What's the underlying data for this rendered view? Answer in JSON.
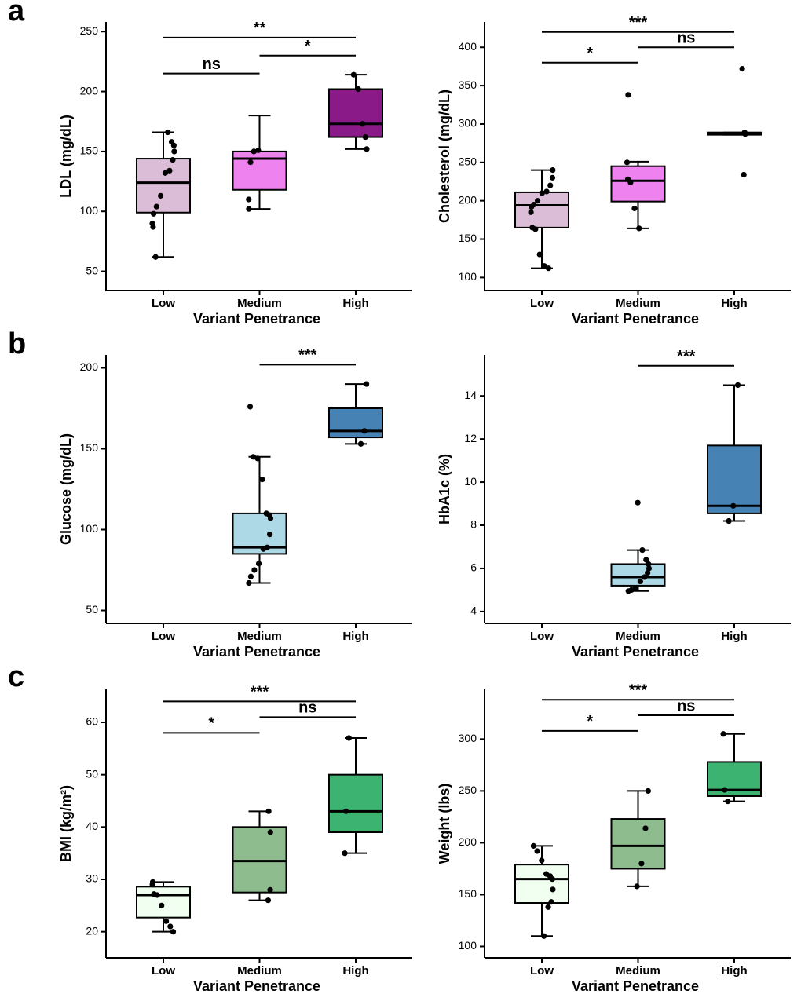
{
  "panel_labels": [
    "a",
    "b",
    "c"
  ],
  "chart_data": [
    {
      "type": "box",
      "xlabel": "Variant Penetrance",
      "ylabel": "LDL (mg/dL)",
      "categories": [
        "Low",
        "Medium",
        "High"
      ],
      "ylim": [
        34,
        258
      ],
      "yticks": [
        50,
        100,
        150,
        200,
        250
      ],
      "boxes": [
        {
          "color": "#dcbdd8",
          "min": 62,
          "q1": 99,
          "median": 124,
          "q3": 144,
          "max": 166,
          "points": [
            166,
            158,
            155,
            150,
            143,
            134,
            132,
            113,
            104,
            98,
            90,
            87,
            62
          ]
        },
        {
          "color": "#ee82ee",
          "min": 102,
          "q1": 118,
          "median": 144,
          "q3": 150,
          "max": 180,
          "points": [
            151,
            150,
            141,
            110,
            102
          ]
        },
        {
          "color": "#8b1a89",
          "min": 152,
          "q1": 162,
          "median": 173,
          "q3": 202,
          "max": 214,
          "points": [
            214,
            202,
            173,
            162,
            152
          ]
        }
      ],
      "annotations": [
        {
          "label": "ns",
          "groups": [
            "Low",
            "Medium"
          ],
          "y": 215
        },
        {
          "label": "*",
          "groups": [
            "Medium",
            "High"
          ],
          "y": 230
        },
        {
          "label": "**",
          "groups": [
            "Low",
            "High"
          ],
          "y": 245
        }
      ]
    },
    {
      "type": "box",
      "xlabel": "Variant Penetrance",
      "ylabel": "Cholesterol (mg/dL)",
      "categories": [
        "Low",
        "Medium",
        "High"
      ],
      "ylim": [
        83,
        433
      ],
      "yticks": [
        100,
        150,
        200,
        250,
        300,
        350,
        400
      ],
      "boxes": [
        {
          "color": "#dcbdd8",
          "min": 112,
          "q1": 165,
          "median": 194,
          "q3": 211,
          "max": 240,
          "points": [
            240,
            230,
            220,
            212,
            210,
            200,
            195,
            192,
            185,
            165,
            163,
            130,
            115,
            112
          ]
        },
        {
          "color": "#ee82ee",
          "min": 164,
          "q1": 199,
          "median": 226,
          "q3": 245,
          "max": 251,
          "points": [
            338,
            250,
            228,
            224,
            190,
            164
          ]
        },
        {
          "color": "#000000",
          "min": 286,
          "q1": 286,
          "median": 288,
          "q3": 289,
          "max": 289,
          "points": [
            372,
            289,
            287,
            234
          ]
        }
      ],
      "annotations": [
        {
          "label": "*",
          "groups": [
            "Low",
            "Medium"
          ],
          "y": 380
        },
        {
          "label": "ns",
          "groups": [
            "Medium",
            "High"
          ],
          "y": 400
        },
        {
          "label": "***",
          "groups": [
            "Low",
            "High"
          ],
          "y": 420
        }
      ]
    },
    {
      "type": "box",
      "xlabel": "Variant Penetrance",
      "ylabel": "Glucose (mg/dL)",
      "categories": [
        "Low",
        "Medium",
        "High"
      ],
      "ylim": [
        42,
        208
      ],
      "yticks": [
        50,
        100,
        150,
        200
      ],
      "boxes": [
        null,
        {
          "color": "#add8e6",
          "min": 67,
          "q1": 85,
          "median": 89,
          "q3": 110,
          "max": 145,
          "points": [
            176,
            145,
            144,
            131,
            110,
            109,
            107,
            97,
            89,
            88,
            79,
            75,
            71,
            67
          ]
        },
        {
          "color": "#4682b4",
          "min": 153,
          "q1": 157,
          "median": 161,
          "q3": 175,
          "max": 190,
          "points": [
            190,
            161,
            153
          ]
        }
      ],
      "annotations": [
        {
          "label": "***",
          "groups": [
            "Medium",
            "High"
          ],
          "y": 202
        }
      ]
    },
    {
      "type": "box",
      "xlabel": "Variant Penetrance",
      "ylabel": "HbA1c (%)",
      "categories": [
        "Low",
        "Medium",
        "High"
      ],
      "ylim": [
        3.45,
        15.9
      ],
      "yticks": [
        4,
        6,
        8,
        10,
        12,
        14
      ],
      "boxes": [
        null,
        {
          "color": "#add8e6",
          "min": 4.95,
          "q1": 5.2,
          "median": 5.6,
          "q3": 6.2,
          "max": 6.85,
          "points": [
            9.05,
            6.85,
            6.4,
            6.2,
            6.0,
            5.8,
            5.6,
            5.4,
            5.1,
            5.0,
            4.95
          ]
        },
        {
          "color": "#4682b4",
          "min": 8.2,
          "q1": 8.55,
          "median": 8.9,
          "q3": 11.7,
          "max": 14.5,
          "points": [
            14.5,
            8.9,
            8.2
          ]
        }
      ],
      "annotations": [
        {
          "label": "***",
          "groups": [
            "Medium",
            "High"
          ],
          "y": 15.4
        }
      ]
    },
    {
      "type": "box",
      "xlabel": "Variant Penetrance",
      "ylabel": "BMI (kg/m²)",
      "categories": [
        "Low",
        "Medium",
        "High"
      ],
      "ylim": [
        15,
        66.3
      ],
      "yticks": [
        20,
        30,
        40,
        50,
        60
      ],
      "boxes": [
        {
          "color": "#f0fff0",
          "min": 20,
          "q1": 22.7,
          "median": 27,
          "q3": 28.6,
          "max": 29.5,
          "points": [
            29.5,
            29,
            27.2,
            27,
            25,
            22,
            21,
            20
          ]
        },
        {
          "color": "#8fbc8f",
          "min": 26,
          "q1": 27.5,
          "median": 33.5,
          "q3": 40,
          "max": 43,
          "points": [
            43,
            39,
            28,
            26
          ]
        },
        {
          "color": "#3cb371",
          "min": 35,
          "q1": 39,
          "median": 43,
          "q3": 50,
          "max": 57,
          "points": [
            57,
            43,
            35
          ]
        }
      ],
      "annotations": [
        {
          "label": "*",
          "groups": [
            "Low",
            "Medium"
          ],
          "y": 58
        },
        {
          "label": "ns",
          "groups": [
            "Medium",
            "High"
          ],
          "y": 61
        },
        {
          "label": "***",
          "groups": [
            "Low",
            "High"
          ],
          "y": 64
        }
      ]
    },
    {
      "type": "box",
      "xlabel": "Variant Penetrance",
      "ylabel": "Weight (lbs)",
      "categories": [
        "Low",
        "Medium",
        "High"
      ],
      "ylim": [
        89,
        348
      ],
      "yticks": [
        100,
        150,
        200,
        250,
        300
      ],
      "boxes": [
        {
          "color": "#f0fff0",
          "min": 110,
          "q1": 142,
          "median": 165,
          "q3": 179,
          "max": 197,
          "points": [
            197,
            192,
            183,
            170,
            168,
            165,
            155,
            143,
            138,
            110
          ]
        },
        {
          "color": "#8fbc8f",
          "min": 158,
          "q1": 175,
          "median": 197,
          "q3": 223,
          "max": 250,
          "points": [
            250,
            214,
            180,
            158
          ]
        },
        {
          "color": "#3cb371",
          "min": 240,
          "q1": 245,
          "median": 251,
          "q3": 278,
          "max": 305,
          "points": [
            305,
            251,
            240
          ]
        }
      ],
      "annotations": [
        {
          "label": "*",
          "groups": [
            "Low",
            "Medium"
          ],
          "y": 308
        },
        {
          "label": "ns",
          "groups": [
            "Medium",
            "High"
          ],
          "y": 323
        },
        {
          "label": "***",
          "groups": [
            "Low",
            "High"
          ],
          "y": 338
        }
      ]
    }
  ]
}
